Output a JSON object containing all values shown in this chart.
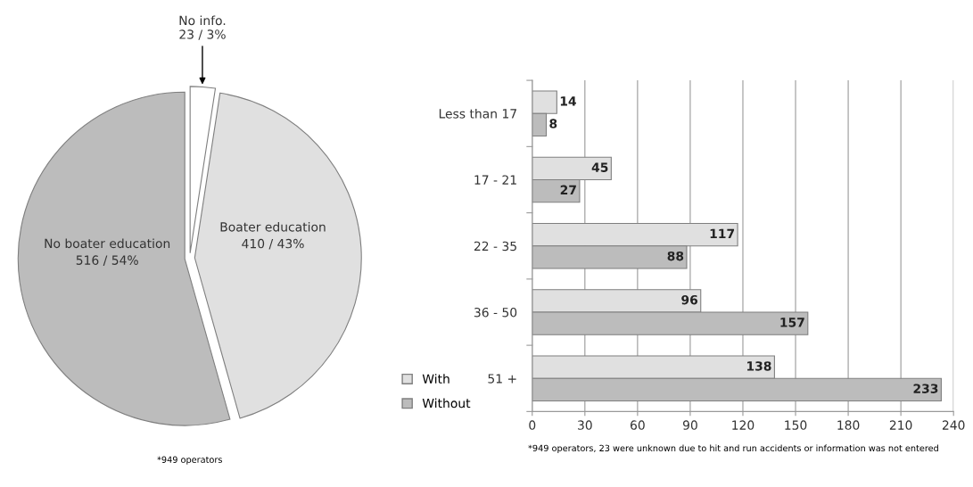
{
  "chart_data": [
    {
      "type": "pie",
      "categories": [
        "No info.",
        "Boater education",
        "No boater education"
      ],
      "values": [
        23,
        410,
        516
      ],
      "value_labels": [
        "23 / 3%",
        "410 / 43%",
        "516 / 54%"
      ],
      "colors": [
        "#ffffff",
        "#e0e0e0",
        "#bcbcbc"
      ],
      "annotations": [
        "*949 operators"
      ]
    },
    {
      "type": "bar",
      "orientation": "horizontal",
      "categories": [
        "Less than 17",
        "17 - 21",
        "22 - 35",
        "36 - 50",
        "51 +"
      ],
      "series": [
        {
          "name": "With",
          "color": "#e0e0e0",
          "values": [
            14,
            45,
            117,
            96,
            138
          ]
        },
        {
          "name": "Without",
          "color": "#bcbcbc",
          "values": [
            8,
            27,
            88,
            157,
            233
          ]
        }
      ],
      "xlim": [
        0,
        240
      ],
      "xticks": [
        0,
        30,
        60,
        90,
        120,
        150,
        180,
        210,
        240
      ],
      "grid": "x",
      "legend": "bottom left",
      "data_labels": true,
      "annotations": [
        "*949 operators, 23 were unknown due to hit and run accidents or information was not entered"
      ]
    }
  ]
}
